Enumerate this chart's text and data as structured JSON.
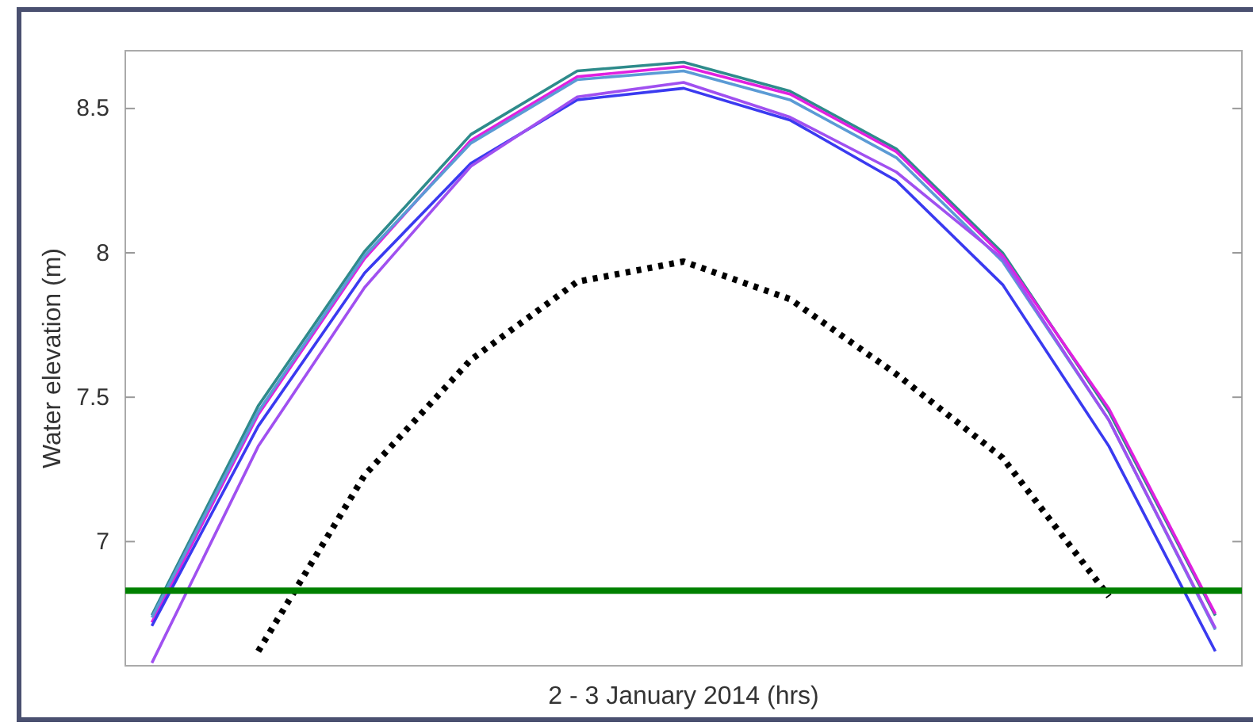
{
  "chart_data": {
    "type": "line",
    "xlabel": "2 - 3 January 2014 (hrs)",
    "ylabel": "Water elevation (m)",
    "categories": [
      null,
      null,
      null,
      null,
      null,
      null,
      null,
      null,
      null,
      null,
      null
    ],
    "ylim": [
      6.57,
      8.7
    ],
    "yticks": [
      7,
      7.5,
      8,
      8.5
    ],
    "grid": false,
    "marker": "none",
    "line_style": "solid",
    "series": [
      {
        "color": "#2e8b8b",
        "values": [
          6.745,
          7.47,
          8.005,
          8.41,
          8.63,
          8.66,
          8.56,
          8.36,
          8.0,
          7.45,
          6.744
        ]
      },
      {
        "color": "#e020e0",
        "values": [
          6.72,
          7.44,
          7.98,
          8.39,
          8.61,
          8.645,
          8.55,
          8.35,
          7.99,
          7.46,
          6.75
        ]
      },
      {
        "color": "#5b9bd5",
        "values": [
          6.737,
          7.45,
          7.99,
          8.38,
          8.6,
          8.63,
          8.53,
          8.33,
          7.97,
          7.42,
          6.695
        ]
      },
      {
        "color": "#3a3af0",
        "values": [
          6.708,
          7.4,
          7.93,
          8.31,
          8.53,
          8.57,
          8.46,
          8.25,
          7.89,
          7.33,
          6.62
        ]
      },
      {
        "color": "#a050f0",
        "values": [
          6.58,
          7.33,
          7.88,
          8.3,
          8.54,
          8.59,
          8.47,
          8.28,
          7.98,
          7.42,
          6.7
        ]
      },
      {
        "color": "#000000",
        "line_style": "dotted",
        "values": [
          null,
          6.62,
          7.23,
          7.63,
          7.9,
          7.97,
          7.84,
          7.58,
          7.29,
          6.81,
          null
        ]
      }
    ],
    "ref_lines": [
      {
        "axis": "y",
        "value": 6.83,
        "color": "#008000"
      }
    ]
  }
}
